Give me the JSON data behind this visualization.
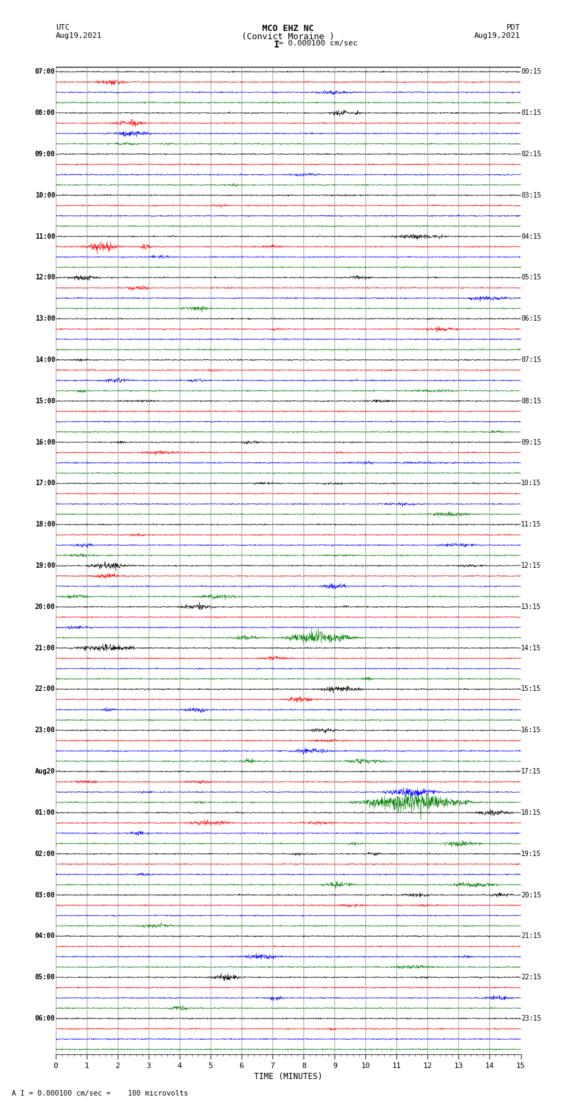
{
  "title_line1": "MCO EHZ NC",
  "title_line2": "(Convict Moraine )",
  "scale_label": "= 0.000100 cm/sec",
  "bottom_label": "A I = 0.000100 cm/sec =    100 microvolts",
  "utc_label": "UTC",
  "utc_date": "Aug19,2021",
  "pdt_label": "PDT",
  "pdt_date": "Aug19,2021",
  "xlabel": "TIME (MINUTES)",
  "background_color": "#ffffff",
  "trace_colors": [
    "black",
    "red",
    "blue",
    "green"
  ],
  "n_groups": 24,
  "minutes": 15,
  "left_times": [
    "07:00",
    "08:00",
    "09:00",
    "10:00",
    "11:00",
    "12:00",
    "13:00",
    "14:00",
    "15:00",
    "16:00",
    "17:00",
    "18:00",
    "19:00",
    "20:00",
    "21:00",
    "22:00",
    "23:00",
    "Aug20",
    "01:00",
    "02:00",
    "03:00",
    "04:00",
    "05:00",
    "06:00"
  ],
  "right_times": [
    "00:15",
    "01:15",
    "02:15",
    "03:15",
    "04:15",
    "05:15",
    "06:15",
    "07:15",
    "08:15",
    "09:15",
    "10:15",
    "11:15",
    "12:15",
    "13:15",
    "14:15",
    "15:15",
    "16:15",
    "17:15",
    "18:15",
    "19:15",
    "20:15",
    "21:15",
    "22:15",
    "23:15"
  ]
}
